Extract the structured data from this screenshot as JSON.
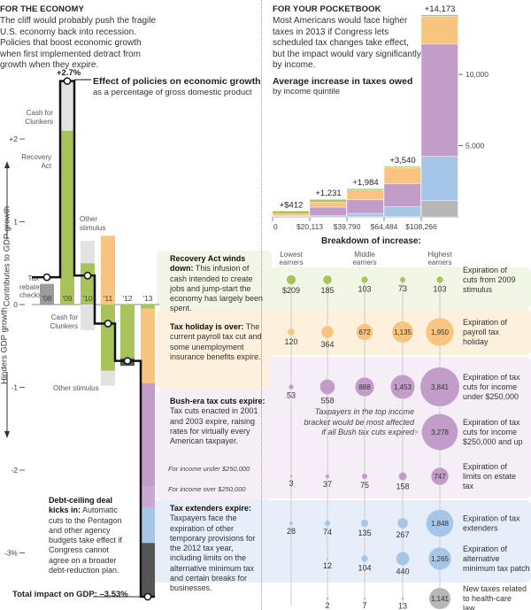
{
  "economy": {
    "kicker": "FOR THE ECONOMY",
    "dek": "The cliff would probably push the fragile U.S. economy back into recession. Policies that boost economic growth when first implemented detract from growth when they expire.",
    "peak_label": "+2.7%",
    "title": "Effect of policies on economic growth",
    "subtitle": "as a percentage of gross domestic product",
    "axis_up": "Contributes to GDP growth",
    "axis_down": "Hinders GDP growth",
    "total_label": "Total impact on GDP: –3.53%",
    "labels": {
      "tax_rebate": "Tax rebate checks",
      "cash_clunkers_pos": "Cash for Clunkers",
      "recovery_act": "Recovery Act",
      "other_stimulus_pos": "Other stimulus",
      "cash_clunkers_neg": "Cash for Clunkers",
      "other_stimulus_neg": "Other stimulus"
    },
    "notes": {
      "recovery_head": "Recovery Act winds down:",
      "recovery_body": " This infusion of cash intended to create jobs and jump-start the economy has largely been spent.",
      "holiday_head": "Tax holiday is over:",
      "holiday_body": " The current payroll tax cut and some unemployment insurance benefits expire.",
      "bush_head": "Bush-era tax cuts expire:",
      "bush_body": " Tax cuts enacted in 2001 and 2003 expire, raising rates for virtually every American taxpayer.",
      "bush_under": "For income under $250,000",
      "bush_over": "For income over $250,000",
      "extenders_head": "Tax extenders expire:",
      "extenders_body": " Taxpayers face the expiration of other temporary provisions for the 2012 tax year, including limits on the alternative minimum tax and certain breaks for businesses.",
      "debt_head": "Debt-ceiling deal kicks in:",
      "debt_body": " Automatic cuts to the Pentagon and other agency budgets take effect if Congress cannot agree on a broader debt-reduction plan."
    }
  },
  "colors": {
    "green": "#a8c35a",
    "lightgray": "#e2e2e2",
    "gray": "#9c9c9c",
    "orange": "#f8c480",
    "purple": "#c29dc9",
    "purple2": "#c9a9cf",
    "blue": "#a6c6e8",
    "darkgray": "#555555",
    "health": "#b7b7b7"
  },
  "chart_data": [
    {
      "type": "bar",
      "subtype": "waterfall",
      "ylim": [
        -3.6,
        2.9
      ],
      "ytick_labels": [
        "+2",
        "1",
        "0",
        "-1",
        "-2",
        "-3%"
      ],
      "yticks": [
        2,
        1,
        0,
        -1,
        -2,
        -3
      ],
      "categories": [
        "'08",
        "'09",
        "'10",
        "'11",
        "'12",
        "'13"
      ],
      "segments": [
        [
          {
            "from": 0,
            "to": 0.25,
            "color": "gray",
            "name": "Tax rebate checks"
          }
        ],
        [
          {
            "from": 0,
            "to": 2.1,
            "color": "green",
            "name": "Recovery Act"
          },
          {
            "from": 2.1,
            "to": 2.7,
            "color": "lightgray",
            "name": "Cash for Clunkers"
          }
        ],
        [
          {
            "from": 0,
            "to": 0.5,
            "color": "green",
            "name": "Recovery Act"
          },
          {
            "from": 0.5,
            "to": 0.77,
            "color": "lightgray",
            "name": "Other stimulus"
          },
          {
            "from": 0,
            "to": -0.31,
            "color": "lightgray",
            "name": "Cash for Clunkers"
          }
        ],
        [
          {
            "from": 0,
            "to": 0.83,
            "color": "orange",
            "name": "Payroll tax holiday"
          },
          {
            "from": 0,
            "to": -0.8,
            "color": "green",
            "name": "Recovery Act"
          },
          {
            "from": -0.8,
            "to": -0.98,
            "color": "lightgray",
            "name": "Other stimulus"
          }
        ],
        [
          {
            "from": 0,
            "to": -0.65,
            "color": "green",
            "name": "Recovery Act"
          },
          {
            "from": -0.65,
            "to": -0.74,
            "color": "darkgray",
            "name": "Debt-ceiling"
          }
        ],
        [
          {
            "from": 0,
            "to": -0.05,
            "color": "green",
            "name": "Recovery Act"
          },
          {
            "from": -0.05,
            "to": -0.95,
            "color": "orange",
            "name": "Tax holiday"
          },
          {
            "from": -0.95,
            "to": -2.2,
            "color": "purple",
            "name": "Bush cuts under $250,000"
          },
          {
            "from": -2.2,
            "to": -2.45,
            "color": "purple2",
            "name": "Bush cuts over $250,000"
          },
          {
            "from": -2.45,
            "to": -2.88,
            "color": "blue",
            "name": "Tax extenders"
          },
          {
            "from": -2.88,
            "to": -3.53,
            "color": "darkgray",
            "name": "Debt-ceiling"
          }
        ]
      ],
      "net": [
        0.33,
        2.7,
        0.35,
        -0.23,
        -0.68,
        -3.53
      ]
    },
    {
      "type": "bar",
      "subtype": "stacked-variwidth",
      "title": "Average increase in taxes owed",
      "subtitle": "by income quintile",
      "ylim": [
        0,
        14500
      ],
      "yticks": [
        5000,
        10000
      ],
      "ytick_labels": [
        "5,000",
        "10,000"
      ],
      "x_edges": [
        "0",
        "$20,113",
        "$39,790",
        "$64,484",
        "$108,266"
      ],
      "totals": [
        "+$412",
        "+1,231",
        "+1,984",
        "+3,540",
        "+14,173"
      ],
      "stack_order": [
        "health",
        "blue",
        "purple",
        "orange",
        "green"
      ],
      "series": [
        {
          "key": "health",
          "values": [
            0,
            2,
            7,
            13,
            1141
          ]
        },
        {
          "key": "blue",
          "values": [
            28,
            86,
            239,
            707,
            3113
          ]
        },
        {
          "key": "purple",
          "values": [
            56,
            595,
            963,
            1611,
            7866
          ]
        },
        {
          "key": "orange",
          "values": [
            120,
            364,
            672,
            1135,
            1950
          ]
        },
        {
          "key": "green",
          "values": [
            209,
            185,
            103,
            73,
            103
          ]
        }
      ]
    },
    {
      "type": "scatter",
      "subtype": "bubble",
      "title": "Breakdown of increase:",
      "columns": [
        "Lowest earners",
        "",
        "Middle earners",
        "",
        "Highest earners"
      ],
      "rows": [
        {
          "label": "Expiration of cuts from 2009 stimulus",
          "color": "green",
          "values": [
            209,
            185,
            103,
            73,
            103
          ],
          "text": [
            "$209",
            "185",
            "103",
            "73",
            "103"
          ]
        },
        {
          "label": "Expiration of payroll tax holiday",
          "color": "orange",
          "values": [
            120,
            364,
            672,
            1135,
            1950
          ],
          "text": [
            "120",
            "364",
            "672",
            "1,135",
            "1,950"
          ]
        },
        {
          "label": "Expiration of tax cuts for income under $250,000",
          "color": "purple",
          "values": [
            53,
            558,
            888,
            1453,
            3841
          ],
          "text": [
            "53",
            "558",
            "888",
            "1,453",
            "3,841"
          ]
        },
        {
          "label": "Expiration of tax cuts for income $250,000 and up",
          "color": "purple",
          "values": [
            0,
            0,
            0,
            0,
            3278
          ],
          "text": [
            "",
            "",
            "",
            "",
            "3,278"
          ]
        },
        {
          "label": "Expiration of limits on estate tax",
          "color": "purple",
          "values": [
            3,
            37,
            75,
            158,
            747
          ],
          "text": [
            "3",
            "37",
            "75",
            "158",
            "747"
          ]
        },
        {
          "label": "Expiration of tax extenders",
          "color": "blue",
          "values": [
            28,
            74,
            135,
            267,
            1848
          ],
          "text": [
            "28",
            "74",
            "135",
            "267",
            "1,848"
          ]
        },
        {
          "label": "Expiration of alternative minimum tax patch",
          "color": "blue",
          "values": [
            0,
            12,
            104,
            440,
            1265
          ],
          "text": [
            "",
            "12",
            "104",
            "440",
            "1,265"
          ]
        },
        {
          "label": "New taxes related to health-care law",
          "color": "health",
          "values": [
            0,
            2,
            7,
            13,
            1141
          ],
          "text": [
            "",
            "2",
            "7",
            "13",
            "1,141"
          ]
        }
      ],
      "annotation": "Taxpayers in the top income bracket would be most affected if all Bush tax cuts expired"
    }
  ],
  "pocketbook": {
    "kicker": "FOR YOUR POCKETBOOK",
    "dek": "Most Americans would face higher taxes in 2013 if Congress lets scheduled tax changes take effect, but the impact would vary significantly by income."
  }
}
